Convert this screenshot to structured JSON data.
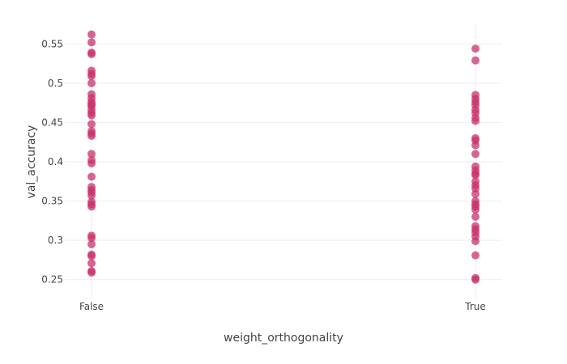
{
  "chart_data": {
    "type": "scatter",
    "xlabel": "weight_orthogonality",
    "ylabel": "val_accuracy",
    "categories": [
      "False",
      "True"
    ],
    "ylim": [
      0.225,
      0.575
    ],
    "yticks": [
      0.25,
      0.3,
      0.35,
      0.4,
      0.45,
      0.5,
      0.55
    ],
    "ytick_labels": [
      "0.25",
      "0.3",
      "0.35",
      "0.4",
      "0.45",
      "0.5",
      "0.55"
    ],
    "grid": true,
    "marker_color": "#c8336b",
    "series": [
      {
        "category": "False",
        "values": [
          0.562,
          0.552,
          0.539,
          0.537,
          0.516,
          0.512,
          0.509,
          0.5,
          0.486,
          0.481,
          0.476,
          0.473,
          0.471,
          0.466,
          0.462,
          0.459,
          0.448,
          0.439,
          0.436,
          0.433,
          0.41,
          0.402,
          0.398,
          0.381,
          0.368,
          0.364,
          0.361,
          0.357,
          0.349,
          0.346,
          0.343,
          0.306,
          0.303,
          0.295,
          0.282,
          0.28,
          0.271,
          0.261,
          0.259
        ]
      },
      {
        "category": "True",
        "values": [
          0.544,
          0.529,
          0.485,
          0.48,
          0.476,
          0.472,
          0.466,
          0.462,
          0.456,
          0.452,
          0.43,
          0.427,
          0.421,
          0.41,
          0.394,
          0.389,
          0.385,
          0.383,
          0.375,
          0.37,
          0.366,
          0.359,
          0.35,
          0.346,
          0.343,
          0.339,
          0.33,
          0.318,
          0.314,
          0.31,
          0.305,
          0.299,
          0.281,
          0.252,
          0.25
        ]
      }
    ]
  }
}
